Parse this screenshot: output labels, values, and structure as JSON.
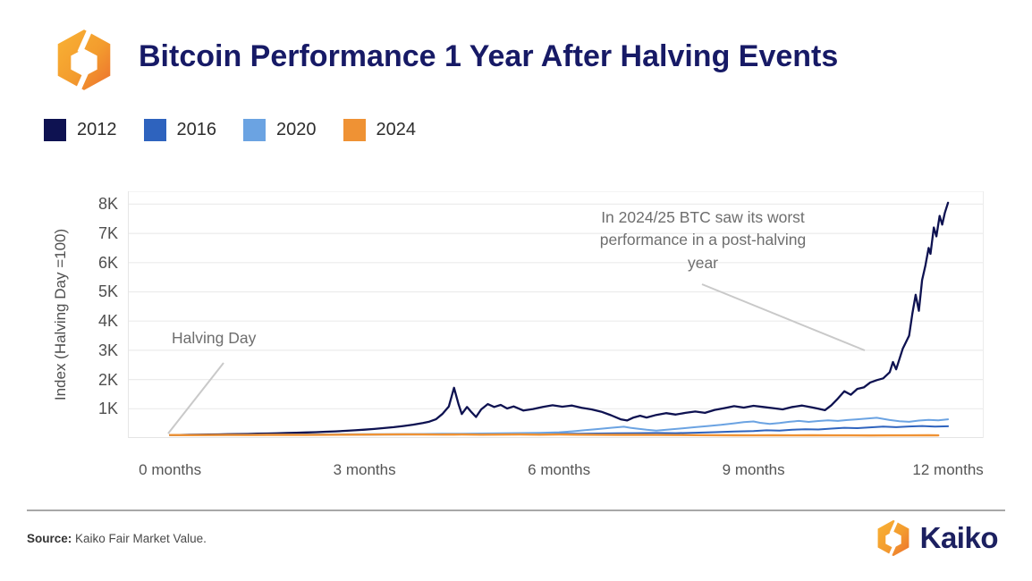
{
  "header": {
    "title": "Bitcoin Performance 1 Year After Halving Events"
  },
  "legend": [
    {
      "label": "2012",
      "color": "#0e1251"
    },
    {
      "label": "2016",
      "color": "#2e63be"
    },
    {
      "label": "2020",
      "color": "#6ba3e2"
    },
    {
      "label": "2024",
      "color": "#ef9234"
    }
  ],
  "annotations": {
    "halving_day": "Halving Day",
    "worst_performance": "In 2024/25 BTC saw its worst performance in a post-halving year"
  },
  "footer": {
    "source_label": "Source:",
    "source_text": "Kaiko Fair Market Value.",
    "brand": "Kaiko"
  },
  "chart_data": {
    "type": "line",
    "title": "Bitcoin Performance 1 Year After Halving Events",
    "xlabel": "",
    "ylabel": "Index (Halving Day =100)",
    "x_unit": "months after halving",
    "xlim": [
      -0.65,
      12.55
    ],
    "ylim": [
      0,
      8440
    ],
    "grid": true,
    "grid_values": [
      0,
      1000,
      2000,
      3000,
      4000,
      5000,
      6000,
      7000,
      8000
    ],
    "x_ticks": [
      "0 months",
      "3 months",
      "6 months",
      "9 months",
      "12 months"
    ],
    "x_tick_values": [
      0,
      3,
      6,
      9,
      12
    ],
    "y_ticks": [
      "1K",
      "2K",
      "3K",
      "4K",
      "5K",
      "6K",
      "7K",
      "8K"
    ],
    "y_tick_values": [
      1000,
      2000,
      3000,
      4000,
      5000,
      6000,
      7000,
      8000
    ],
    "legend_position": "top-left",
    "annotations": [
      {
        "text": "Halving Day",
        "points_to_x": 0,
        "points_to_y": 100
      },
      {
        "text": "In 2024/25 BTC saw its worst performance in a post-halving year",
        "points_to_x": 10.7,
        "points_to_y": 3000
      }
    ],
    "series": [
      {
        "name": "2012",
        "color": "#0e1251",
        "width": 2.3,
        "points": [
          [
            0,
            100
          ],
          [
            0.15,
            104
          ],
          [
            0.3,
            109
          ],
          [
            0.45,
            112
          ],
          [
            0.6,
            118
          ],
          [
            0.75,
            122
          ],
          [
            0.9,
            128
          ],
          [
            1.05,
            133
          ],
          [
            1.2,
            139
          ],
          [
            1.35,
            146
          ],
          [
            1.5,
            152
          ],
          [
            1.65,
            160
          ],
          [
            1.8,
            170
          ],
          [
            1.95,
            178
          ],
          [
            2.1,
            190
          ],
          [
            2.25,
            200
          ],
          [
            2.4,
            213
          ],
          [
            2.55,
            226
          ],
          [
            2.7,
            244
          ],
          [
            2.85,
            262
          ],
          [
            3.0,
            285
          ],
          [
            3.15,
            310
          ],
          [
            3.3,
            340
          ],
          [
            3.45,
            370
          ],
          [
            3.6,
            410
          ],
          [
            3.75,
            455
          ],
          [
            3.9,
            515
          ],
          [
            4.0,
            560
          ],
          [
            4.1,
            640
          ],
          [
            4.2,
            820
          ],
          [
            4.3,
            1080
          ],
          [
            4.38,
            1720
          ],
          [
            4.45,
            1150
          ],
          [
            4.5,
            820
          ],
          [
            4.58,
            1060
          ],
          [
            4.65,
            880
          ],
          [
            4.72,
            720
          ],
          [
            4.8,
            980
          ],
          [
            4.9,
            1160
          ],
          [
            5.0,
            1060
          ],
          [
            5.1,
            1130
          ],
          [
            5.2,
            1010
          ],
          [
            5.3,
            1080
          ],
          [
            5.45,
            940
          ],
          [
            5.6,
            990
          ],
          [
            5.75,
            1060
          ],
          [
            5.9,
            1120
          ],
          [
            6.05,
            1070
          ],
          [
            6.2,
            1110
          ],
          [
            6.35,
            1030
          ],
          [
            6.5,
            980
          ],
          [
            6.65,
            900
          ],
          [
            6.8,
            780
          ],
          [
            6.95,
            640
          ],
          [
            7.05,
            600
          ],
          [
            7.15,
            700
          ],
          [
            7.25,
            760
          ],
          [
            7.35,
            700
          ],
          [
            7.5,
            790
          ],
          [
            7.65,
            850
          ],
          [
            7.8,
            800
          ],
          [
            7.95,
            860
          ],
          [
            8.1,
            905
          ],
          [
            8.25,
            860
          ],
          [
            8.4,
            960
          ],
          [
            8.55,
            1020
          ],
          [
            8.7,
            1090
          ],
          [
            8.85,
            1040
          ],
          [
            9.0,
            1100
          ],
          [
            9.15,
            1060
          ],
          [
            9.3,
            1020
          ],
          [
            9.45,
            980
          ],
          [
            9.6,
            1060
          ],
          [
            9.75,
            1110
          ],
          [
            9.9,
            1050
          ],
          [
            10.0,
            1000
          ],
          [
            10.1,
            950
          ],
          [
            10.2,
            1120
          ],
          [
            10.3,
            1350
          ],
          [
            10.4,
            1600
          ],
          [
            10.5,
            1480
          ],
          [
            10.6,
            1680
          ],
          [
            10.7,
            1730
          ],
          [
            10.8,
            1900
          ],
          [
            10.9,
            1980
          ],
          [
            11.0,
            2040
          ],
          [
            11.1,
            2250
          ],
          [
            11.15,
            2600
          ],
          [
            11.2,
            2350
          ],
          [
            11.3,
            3050
          ],
          [
            11.4,
            3500
          ],
          [
            11.45,
            4250
          ],
          [
            11.5,
            4900
          ],
          [
            11.55,
            4350
          ],
          [
            11.6,
            5400
          ],
          [
            11.65,
            5900
          ],
          [
            11.7,
            6500
          ],
          [
            11.73,
            6300
          ],
          [
            11.78,
            7200
          ],
          [
            11.82,
            6900
          ],
          [
            11.87,
            7600
          ],
          [
            11.91,
            7300
          ],
          [
            11.95,
            7700
          ],
          [
            12.0,
            8050
          ]
        ]
      },
      {
        "name": "2016",
        "color": "#2e63be",
        "width": 2,
        "points": [
          [
            0,
            100
          ],
          [
            0.3,
            101
          ],
          [
            0.6,
            103
          ],
          [
            0.9,
            105
          ],
          [
            1.2,
            106
          ],
          [
            1.5,
            108
          ],
          [
            1.8,
            109
          ],
          [
            2.1,
            111
          ],
          [
            2.4,
            112
          ],
          [
            2.7,
            114
          ],
          [
            3.0,
            116
          ],
          [
            3.3,
            118
          ],
          [
            3.6,
            120
          ],
          [
            3.9,
            122
          ],
          [
            4.2,
            124
          ],
          [
            4.5,
            127
          ],
          [
            4.8,
            130
          ],
          [
            5.1,
            133
          ],
          [
            5.4,
            136
          ],
          [
            5.7,
            139
          ],
          [
            6.0,
            143
          ],
          [
            6.3,
            148
          ],
          [
            6.6,
            153
          ],
          [
            6.9,
            158
          ],
          [
            7.2,
            164
          ],
          [
            7.5,
            170
          ],
          [
            7.8,
            165
          ],
          [
            8.1,
            180
          ],
          [
            8.4,
            200
          ],
          [
            8.7,
            220
          ],
          [
            9.0,
            240
          ],
          [
            9.2,
            262
          ],
          [
            9.4,
            255
          ],
          [
            9.6,
            285
          ],
          [
            9.8,
            300
          ],
          [
            10.0,
            290
          ],
          [
            10.2,
            320
          ],
          [
            10.4,
            350
          ],
          [
            10.6,
            335
          ],
          [
            10.8,
            365
          ],
          [
            11.0,
            390
          ],
          [
            11.2,
            370
          ],
          [
            11.4,
            395
          ],
          [
            11.6,
            410
          ],
          [
            11.8,
            390
          ],
          [
            12.0,
            400
          ]
        ]
      },
      {
        "name": "2020",
        "color": "#6ba3e2",
        "width": 2,
        "points": [
          [
            0,
            100
          ],
          [
            0.3,
            102
          ],
          [
            0.6,
            105
          ],
          [
            0.9,
            108
          ],
          [
            1.2,
            110
          ],
          [
            1.5,
            113
          ],
          [
            1.8,
            116
          ],
          [
            2.1,
            118
          ],
          [
            2.4,
            121
          ],
          [
            2.7,
            124
          ],
          [
            3.0,
            127
          ],
          [
            3.3,
            130
          ],
          [
            3.6,
            134
          ],
          [
            3.9,
            138
          ],
          [
            4.2,
            143
          ],
          [
            4.5,
            148
          ],
          [
            4.8,
            154
          ],
          [
            5.1,
            160
          ],
          [
            5.4,
            168
          ],
          [
            5.7,
            178
          ],
          [
            6.0,
            195
          ],
          [
            6.2,
            225
          ],
          [
            6.4,
            265
          ],
          [
            6.6,
            305
          ],
          [
            6.8,
            350
          ],
          [
            7.0,
            385
          ],
          [
            7.1,
            350
          ],
          [
            7.2,
            320
          ],
          [
            7.35,
            280
          ],
          [
            7.5,
            255
          ],
          [
            7.7,
            290
          ],
          [
            7.9,
            330
          ],
          [
            8.1,
            370
          ],
          [
            8.3,
            410
          ],
          [
            8.5,
            450
          ],
          [
            8.7,
            500
          ],
          [
            8.85,
            545
          ],
          [
            9.0,
            565
          ],
          [
            9.1,
            520
          ],
          [
            9.25,
            480
          ],
          [
            9.4,
            510
          ],
          [
            9.55,
            555
          ],
          [
            9.7,
            585
          ],
          [
            9.85,
            550
          ],
          [
            10.0,
            580
          ],
          [
            10.15,
            605
          ],
          [
            10.3,
            585
          ],
          [
            10.45,
            615
          ],
          [
            10.6,
            640
          ],
          [
            10.75,
            665
          ],
          [
            10.9,
            690
          ],
          [
            11.0,
            655
          ],
          [
            11.1,
            615
          ],
          [
            11.25,
            575
          ],
          [
            11.4,
            555
          ],
          [
            11.55,
            595
          ],
          [
            11.7,
            620
          ],
          [
            11.85,
            605
          ],
          [
            12.0,
            640
          ]
        ]
      },
      {
        "name": "2024",
        "color": "#ef9234",
        "width": 2.4,
        "points": [
          [
            0,
            100
          ],
          [
            0.3,
            99
          ],
          [
            0.6,
            102
          ],
          [
            0.9,
            104
          ],
          [
            1.2,
            101
          ],
          [
            1.5,
            106
          ],
          [
            1.8,
            108
          ],
          [
            2.1,
            104
          ],
          [
            2.4,
            109
          ],
          [
            2.7,
            112
          ],
          [
            3.0,
            116
          ],
          [
            3.3,
            120
          ],
          [
            3.6,
            124
          ],
          [
            3.9,
            120
          ],
          [
            4.2,
            115
          ],
          [
            4.5,
            118
          ],
          [
            4.8,
            112
          ],
          [
            5.1,
            115
          ],
          [
            5.4,
            118
          ],
          [
            5.7,
            114
          ],
          [
            6.0,
            118
          ],
          [
            6.3,
            114
          ],
          [
            6.6,
            110
          ],
          [
            6.9,
            106
          ],
          [
            7.2,
            108
          ],
          [
            7.5,
            104
          ],
          [
            7.8,
            100
          ],
          [
            8.1,
            98
          ],
          [
            8.4,
            95
          ],
          [
            8.7,
            93
          ],
          [
            9.0,
            90
          ],
          [
            9.3,
            92
          ],
          [
            9.6,
            89
          ],
          [
            9.9,
            91
          ],
          [
            10.2,
            88
          ],
          [
            10.5,
            90
          ],
          [
            10.8,
            87
          ],
          [
            11.1,
            90
          ],
          [
            11.4,
            88
          ],
          [
            11.7,
            91
          ],
          [
            11.85,
            89
          ]
        ]
      }
    ]
  }
}
